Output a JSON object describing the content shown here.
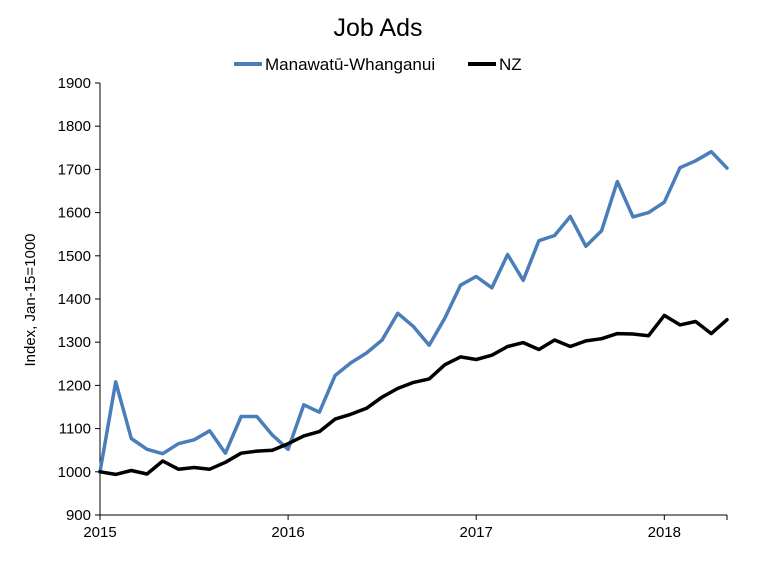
{
  "chart_data": {
    "type": "line",
    "title": "Job Ads",
    "xlabel": "",
    "ylabel": "Index, Jan-15=1000",
    "ylim": [
      900,
      1900
    ],
    "yticks": [
      900,
      1000,
      1100,
      1200,
      1300,
      1400,
      1500,
      1600,
      1700,
      1800,
      1900
    ],
    "xlim": [
      "2015-01",
      "2018-05"
    ],
    "xtick_labels": [
      "2015",
      "2016",
      "2017",
      "2018"
    ],
    "grid": false,
    "legend_position": "top-center",
    "x": [
      "2015-01",
      "2015-02",
      "2015-03",
      "2015-04",
      "2015-05",
      "2015-06",
      "2015-07",
      "2015-08",
      "2015-09",
      "2015-10",
      "2015-11",
      "2015-12",
      "2016-01",
      "2016-02",
      "2016-03",
      "2016-04",
      "2016-05",
      "2016-06",
      "2016-07",
      "2016-08",
      "2016-09",
      "2016-10",
      "2016-11",
      "2016-12",
      "2017-01",
      "2017-02",
      "2017-03",
      "2017-04",
      "2017-05",
      "2017-06",
      "2017-07",
      "2017-08",
      "2017-09",
      "2017-10",
      "2017-11",
      "2017-12",
      "2018-01",
      "2018-02",
      "2018-03",
      "2018-04",
      "2018-05"
    ],
    "series": [
      {
        "name": "Manawatū-Whanganui",
        "color": "#4a7ebb",
        "values": [
          1000,
          1208,
          1077,
          1052,
          1042,
          1065,
          1074,
          1095,
          1043,
          1128,
          1128,
          1085,
          1052,
          1155,
          1138,
          1223,
          1252,
          1275,
          1305,
          1367,
          1336,
          1293,
          1356,
          1432,
          1452,
          1426,
          1503,
          1443,
          1535,
          1547,
          1591,
          1522,
          1558,
          1672,
          1590,
          1600,
          1624,
          1704,
          1720,
          1741,
          1703
        ]
      },
      {
        "name": "NZ",
        "color": "#000000",
        "values": [
          1000,
          994,
          1003,
          995,
          1025,
          1006,
          1010,
          1006,
          1022,
          1043,
          1048,
          1050,
          1065,
          1083,
          1093,
          1122,
          1133,
          1147,
          1173,
          1193,
          1207,
          1215,
          1248,
          1266,
          1260,
          1270,
          1290,
          1299,
          1283,
          1305,
          1290,
          1303,
          1308,
          1320,
          1319,
          1315,
          1362,
          1340,
          1348,
          1320,
          1352
        ]
      }
    ]
  }
}
